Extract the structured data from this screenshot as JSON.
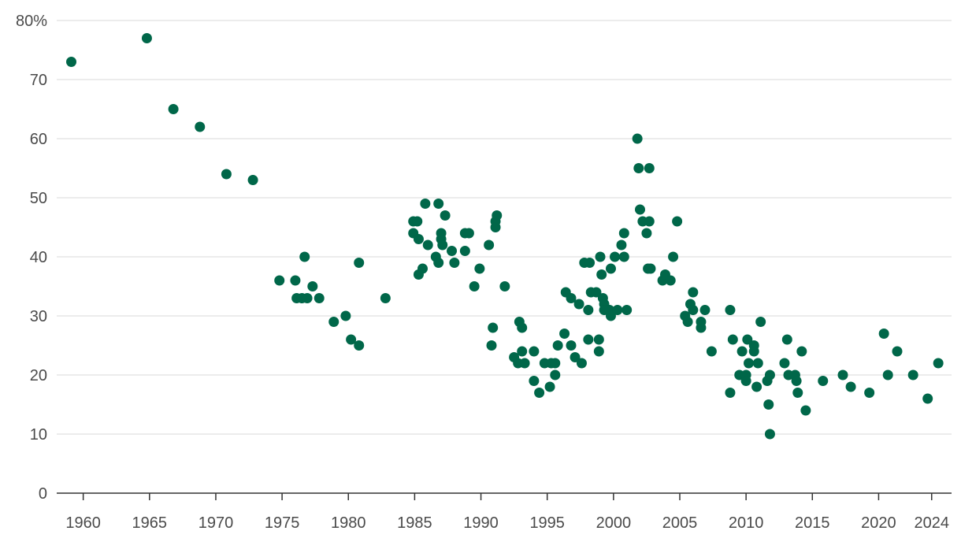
{
  "chart_data": {
    "type": "scatter",
    "title": "",
    "xlabel": "",
    "ylabel": "",
    "xlim": [
      1958,
      2025.5
    ],
    "ylim": [
      0,
      80
    ],
    "grid": "horizontal",
    "marker_color": "#006749",
    "y_ticks": [
      {
        "value": 80,
        "label": "80%"
      },
      {
        "value": 70,
        "label": "70"
      },
      {
        "value": 60,
        "label": "60"
      },
      {
        "value": 50,
        "label": "50"
      },
      {
        "value": 40,
        "label": "40"
      },
      {
        "value": 30,
        "label": "30"
      },
      {
        "value": 20,
        "label": "20"
      },
      {
        "value": 10,
        "label": "10"
      },
      {
        "value": 0,
        "label": "0"
      }
    ],
    "x_ticks": [
      {
        "value": 1960,
        "label": "1960"
      },
      {
        "value": 1965,
        "label": "1965"
      },
      {
        "value": 1970,
        "label": "1970"
      },
      {
        "value": 1975,
        "label": "1975"
      },
      {
        "value": 1980,
        "label": "1980"
      },
      {
        "value": 1985,
        "label": "1985"
      },
      {
        "value": 1990,
        "label": "1990"
      },
      {
        "value": 1995,
        "label": "1995"
      },
      {
        "value": 2000,
        "label": "2000"
      },
      {
        "value": 2005,
        "label": "2005"
      },
      {
        "value": 2010,
        "label": "2010"
      },
      {
        "value": 2015,
        "label": "2015"
      },
      {
        "value": 2020,
        "label": "2020"
      },
      {
        "value": 2024,
        "label": "2024"
      }
    ],
    "points": [
      [
        1959.1,
        73
      ],
      [
        1964.8,
        77
      ],
      [
        1966.8,
        65
      ],
      [
        1968.8,
        62
      ],
      [
        1970.8,
        54
      ],
      [
        1972.8,
        53
      ],
      [
        1974.8,
        36
      ],
      [
        1976.0,
        36
      ],
      [
        1976.1,
        33
      ],
      [
        1976.5,
        33
      ],
      [
        1976.7,
        40
      ],
      [
        1976.9,
        33
      ],
      [
        1977.3,
        35
      ],
      [
        1977.8,
        33
      ],
      [
        1978.9,
        29
      ],
      [
        1979.8,
        30
      ],
      [
        1980.2,
        26
      ],
      [
        1980.8,
        39
      ],
      [
        1980.8,
        25
      ],
      [
        1982.8,
        33
      ],
      [
        1984.9,
        44
      ],
      [
        1984.9,
        46
      ],
      [
        1985.2,
        46
      ],
      [
        1985.3,
        43
      ],
      [
        1985.3,
        37
      ],
      [
        1985.6,
        38
      ],
      [
        1985.8,
        49
      ],
      [
        1986.0,
        42
      ],
      [
        1986.6,
        40
      ],
      [
        1986.8,
        39
      ],
      [
        1986.8,
        49
      ],
      [
        1987.0,
        44
      ],
      [
        1987.0,
        43
      ],
      [
        1987.1,
        42
      ],
      [
        1987.3,
        47
      ],
      [
        1987.8,
        41
      ],
      [
        1988.0,
        39
      ],
      [
        1988.8,
        41
      ],
      [
        1988.8,
        44
      ],
      [
        1989.1,
        44
      ],
      [
        1989.5,
        35
      ],
      [
        1989.9,
        38
      ],
      [
        1990.6,
        42
      ],
      [
        1990.8,
        25
      ],
      [
        1990.9,
        28
      ],
      [
        1991.1,
        45
      ],
      [
        1991.1,
        46
      ],
      [
        1991.2,
        47
      ],
      [
        1991.8,
        35
      ],
      [
        1992.5,
        23
      ],
      [
        1992.8,
        22
      ],
      [
        1992.9,
        29
      ],
      [
        1993.1,
        28
      ],
      [
        1993.1,
        24
      ],
      [
        1993.3,
        22
      ],
      [
        1994.0,
        24
      ],
      [
        1994.0,
        19
      ],
      [
        1994.4,
        17
      ],
      [
        1994.8,
        22
      ],
      [
        1995.2,
        18
      ],
      [
        1995.3,
        22
      ],
      [
        1995.6,
        22
      ],
      [
        1995.6,
        20
      ],
      [
        1995.8,
        25
      ],
      [
        1996.3,
        27
      ],
      [
        1996.4,
        34
      ],
      [
        1996.8,
        33
      ],
      [
        1996.8,
        25
      ],
      [
        1997.1,
        23
      ],
      [
        1997.4,
        32
      ],
      [
        1997.6,
        22
      ],
      [
        1997.8,
        39
      ],
      [
        1998.1,
        31
      ],
      [
        1998.1,
        26
      ],
      [
        1998.2,
        39
      ],
      [
        1998.3,
        34
      ],
      [
        1998.7,
        34
      ],
      [
        1998.9,
        24
      ],
      [
        1998.9,
        26
      ],
      [
        1999.0,
        40
      ],
      [
        1999.1,
        37
      ],
      [
        1999.2,
        33
      ],
      [
        1999.3,
        32
      ],
      [
        1999.3,
        31
      ],
      [
        1999.7,
        31
      ],
      [
        1999.8,
        38
      ],
      [
        1999.8,
        30
      ],
      [
        2000.1,
        40
      ],
      [
        2000.3,
        31
      ],
      [
        2000.6,
        42
      ],
      [
        2000.8,
        40
      ],
      [
        2000.8,
        44
      ],
      [
        2001.0,
        31
      ],
      [
        2001.8,
        60
      ],
      [
        2001.9,
        55
      ],
      [
        2002.0,
        48
      ],
      [
        2002.2,
        46
      ],
      [
        2002.5,
        44
      ],
      [
        2002.6,
        38
      ],
      [
        2002.7,
        46
      ],
      [
        2002.7,
        55
      ],
      [
        2002.8,
        38
      ],
      [
        2003.7,
        36
      ],
      [
        2003.9,
        37
      ],
      [
        2004.3,
        36
      ],
      [
        2004.5,
        40
      ],
      [
        2004.8,
        46
      ],
      [
        2005.4,
        30
      ],
      [
        2005.6,
        29
      ],
      [
        2005.8,
        32
      ],
      [
        2006.0,
        34
      ],
      [
        2006.0,
        31
      ],
      [
        2006.6,
        28
      ],
      [
        2006.6,
        29
      ],
      [
        2006.9,
        31
      ],
      [
        2007.4,
        24
      ],
      [
        2008.8,
        17
      ],
      [
        2008.8,
        31
      ],
      [
        2009.0,
        26
      ],
      [
        2009.5,
        20
      ],
      [
        2009.7,
        24
      ],
      [
        2010.0,
        20
      ],
      [
        2010.0,
        19
      ],
      [
        2010.1,
        26
      ],
      [
        2010.2,
        22
      ],
      [
        2010.6,
        25
      ],
      [
        2010.6,
        24
      ],
      [
        2010.8,
        18
      ],
      [
        2010.9,
        22
      ],
      [
        2011.1,
        29
      ],
      [
        2011.6,
        19
      ],
      [
        2011.7,
        15
      ],
      [
        2011.8,
        10
      ],
      [
        2011.8,
        20
      ],
      [
        2012.9,
        22
      ],
      [
        2013.1,
        26
      ],
      [
        2013.2,
        20
      ],
      [
        2013.7,
        20
      ],
      [
        2013.8,
        19
      ],
      [
        2013.9,
        17
      ],
      [
        2014.2,
        24
      ],
      [
        2014.5,
        14
      ],
      [
        2015.8,
        19
      ],
      [
        2017.3,
        20
      ],
      [
        2017.9,
        18
      ],
      [
        2019.3,
        17
      ],
      [
        2020.4,
        27
      ],
      [
        2020.7,
        20
      ],
      [
        2021.4,
        24
      ],
      [
        2022.6,
        20
      ],
      [
        2023.7,
        16
      ],
      [
        2024.5,
        22
      ]
    ]
  }
}
